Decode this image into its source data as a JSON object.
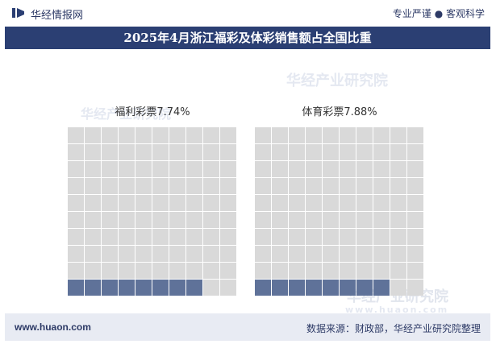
{
  "header": {
    "site_name": "华经情报网",
    "slogan": "专业严谨 ● 客观科学",
    "title": "2025年4月浙江福彩及体彩销售额占全国比重"
  },
  "watermark": {
    "cn": "华经产业研究院",
    "url": "www.huaon.com"
  },
  "footer": {
    "url": "www.huaon.com",
    "source": "数据来源：财政部，华经产业研究院整理"
  },
  "colors": {
    "filled": "#5f7299",
    "empty": "#d9d9d9",
    "header_bg": "#2b3f73"
  },
  "chart_data": {
    "type": "waffle",
    "grid": {
      "rows": 10,
      "cols": 10
    },
    "items": [
      {
        "label": "福利彩票",
        "value_label": "7.74%",
        "value": 7.74
      },
      {
        "label": "体育彩票",
        "value_label": "7.88%",
        "value": 7.88
      }
    ]
  }
}
